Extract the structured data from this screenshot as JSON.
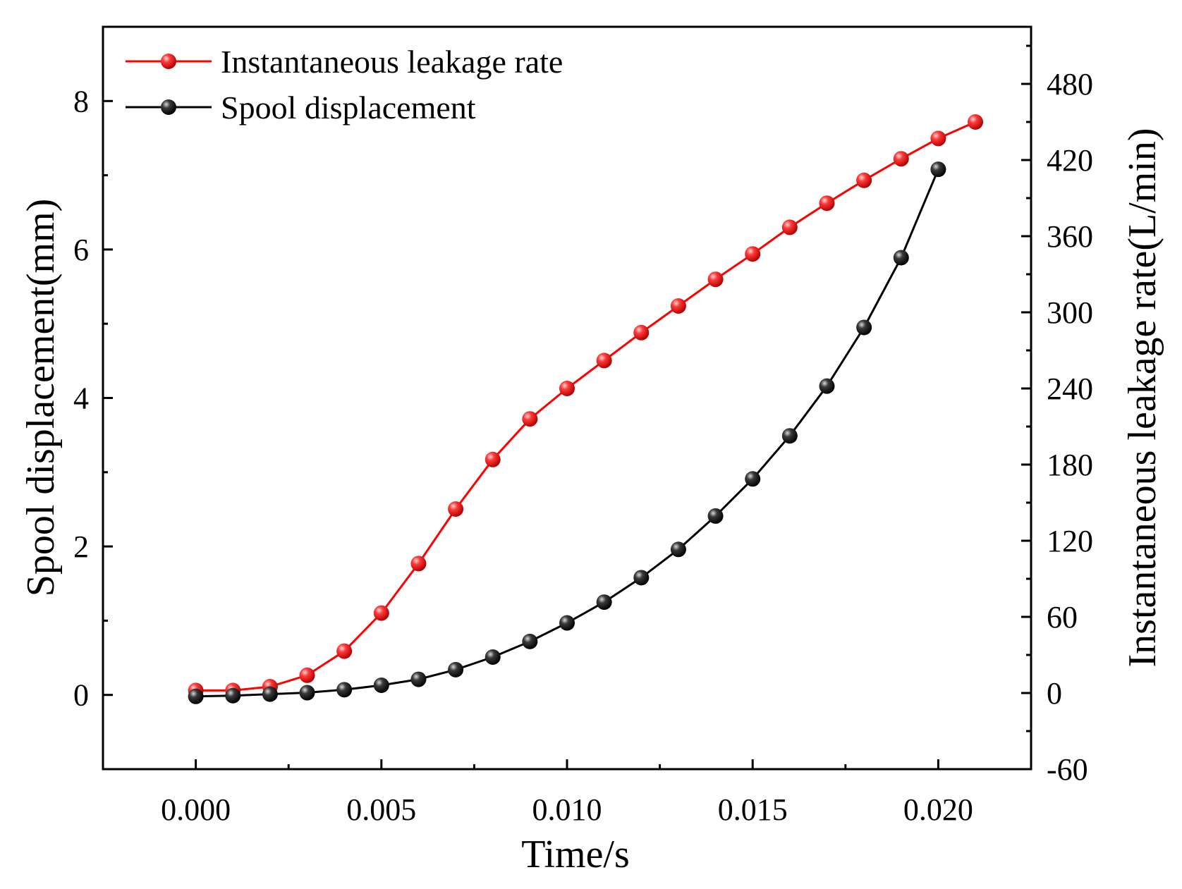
{
  "chart_data": {
    "type": "line",
    "title": "",
    "xlabel": "Time/s",
    "ylabel_left": "Spool displacement(mm)",
    "ylabel_right": "Instantaneous leakage rate(L/min)",
    "xlim": [
      -0.0025,
      0.0225
    ],
    "ylim_left": [
      -1,
      9
    ],
    "ylim_right": [
      -60,
      525
    ],
    "x_ticks": [
      0.0,
      0.005,
      0.01,
      0.015,
      0.02
    ],
    "x_tick_labels": [
      "0.000",
      "0.005",
      "0.010",
      "0.015",
      "0.020"
    ],
    "left_ticks": [
      0,
      2,
      4,
      6,
      8
    ],
    "left_tick_labels": [
      "0",
      "2",
      "4",
      "6",
      "8"
    ],
    "right_ticks": [
      -60,
      0,
      60,
      120,
      180,
      240,
      300,
      360,
      420,
      480
    ],
    "right_tick_labels": [
      "-60",
      "0",
      "60",
      "120",
      "180",
      "240",
      "300",
      "360",
      "420",
      "480"
    ],
    "legend_position": "top-left",
    "series": [
      {
        "name": "Instantaneous leakage rate",
        "axis": "right",
        "color": "#ff0000",
        "x": [
          0.0,
          0.001,
          0.002,
          0.003,
          0.004,
          0.005,
          0.006,
          0.007,
          0.008,
          0.009,
          0.01,
          0.011,
          0.012,
          0.013,
          0.014,
          0.015,
          0.016,
          0.017,
          0.018,
          0.019,
          0.02,
          0.021
        ],
        "values": [
          2,
          2,
          5,
          14,
          33,
          63,
          102,
          145,
          184,
          216,
          240,
          262,
          284,
          305,
          326,
          346,
          367,
          386,
          404,
          421,
          437,
          450
        ]
      },
      {
        "name": "Spool displacement",
        "axis": "left",
        "color": "#000000",
        "x": [
          0.0,
          0.001,
          0.002,
          0.003,
          0.004,
          0.005,
          0.006,
          0.007,
          0.008,
          0.009,
          0.01,
          0.011,
          0.012,
          0.013,
          0.014,
          0.015,
          0.016,
          0.017,
          0.018,
          0.019,
          0.02
        ],
        "values": [
          -0.02,
          -0.01,
          0.01,
          0.03,
          0.07,
          0.13,
          0.21,
          0.34,
          0.51,
          0.72,
          0.97,
          1.25,
          1.58,
          1.96,
          2.41,
          2.91,
          3.49,
          4.16,
          4.95,
          5.89,
          7.08
        ]
      }
    ]
  }
}
